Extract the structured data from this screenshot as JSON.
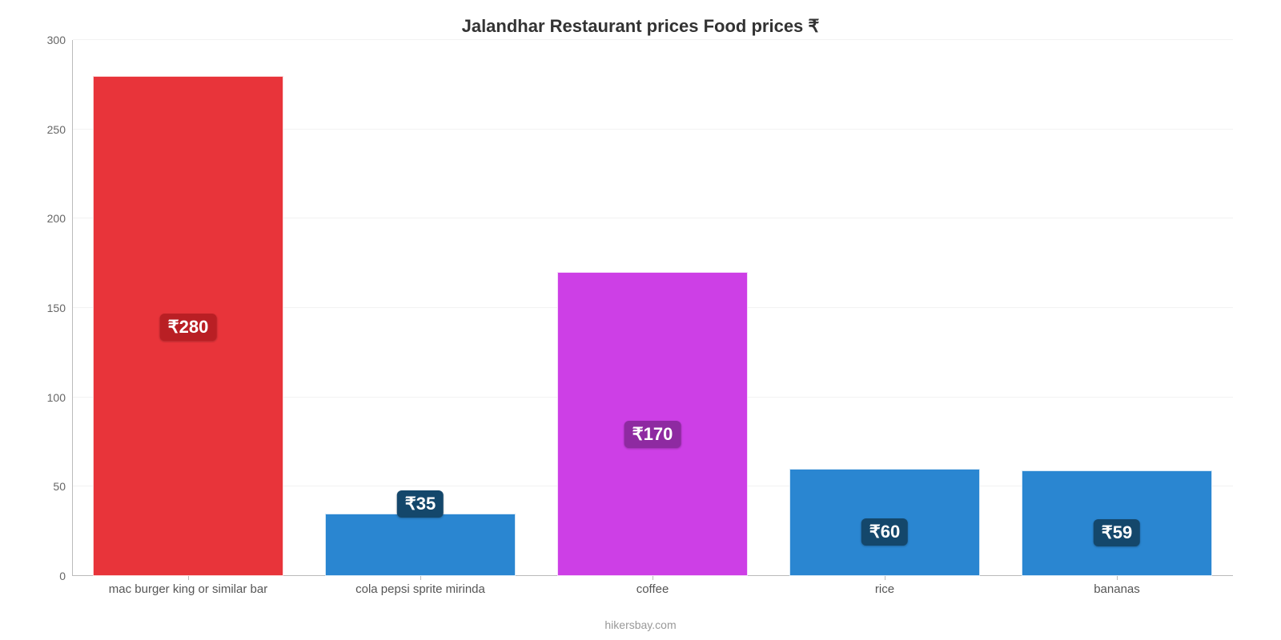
{
  "chart": {
    "type": "bar",
    "title": "Jalandhar Restaurant prices Food prices ₹",
    "title_fontsize": 22,
    "title_color": "#333333",
    "background_color": "#ffffff",
    "grid_color": "#f2f2f2",
    "axis_color": "#bbbbbb",
    "label_color": "#666666",
    "x_label_color": "#555555",
    "bar_width_ratio": 0.82,
    "ymin": 0,
    "ymax": 300,
    "ytick_step": 50,
    "yticks": [
      0,
      50,
      100,
      150,
      200,
      250,
      300
    ],
    "label_fontsize": 14,
    "x_label_fontsize": 15,
    "currency_prefix": "₹",
    "categories": [
      "mac burger king or similar bar",
      "cola pepsi sprite mirinda",
      "coffee",
      "rice",
      "bananas"
    ],
    "values": [
      280,
      35,
      170,
      60,
      59
    ],
    "bar_colors": [
      "#e8343a",
      "#2a86d1",
      "#cd3fe6",
      "#2a86d1",
      "#2a86d1"
    ],
    "badge_colors": [
      "#b91f24",
      "#14476b",
      "#8e2aa1",
      "#14476b",
      "#14476b"
    ],
    "badge_fontsize": 22,
    "badge_text_color": "#ffffff",
    "badge_positions_pct": [
      47,
      94,
      42,
      28,
      28
    ],
    "source": "hikersbay.com",
    "source_color": "#999999",
    "source_fontsize": 14
  }
}
